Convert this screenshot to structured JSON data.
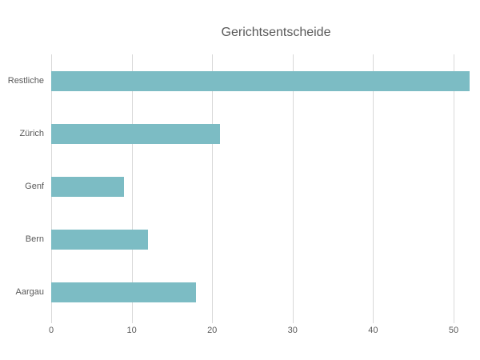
{
  "title": "Gerichtsentscheide",
  "colors": {
    "bar": "#7cbcc4",
    "grid": "#d9d9d9",
    "text": "#595959",
    "background": "#ffffff"
  },
  "chart_data": {
    "type": "bar",
    "orientation": "horizontal",
    "title": "Gerichtsentscheide",
    "categories": [
      "Restliche",
      "Zürich",
      "Genf",
      "Bern",
      "Aargau"
    ],
    "values": [
      52,
      21,
      9,
      12,
      18
    ],
    "xlabel": "",
    "ylabel": "",
    "xlim": [
      0,
      50
    ],
    "xticks": [
      0,
      10,
      20,
      30,
      40,
      50
    ],
    "grid": true,
    "legend_position": "none"
  }
}
